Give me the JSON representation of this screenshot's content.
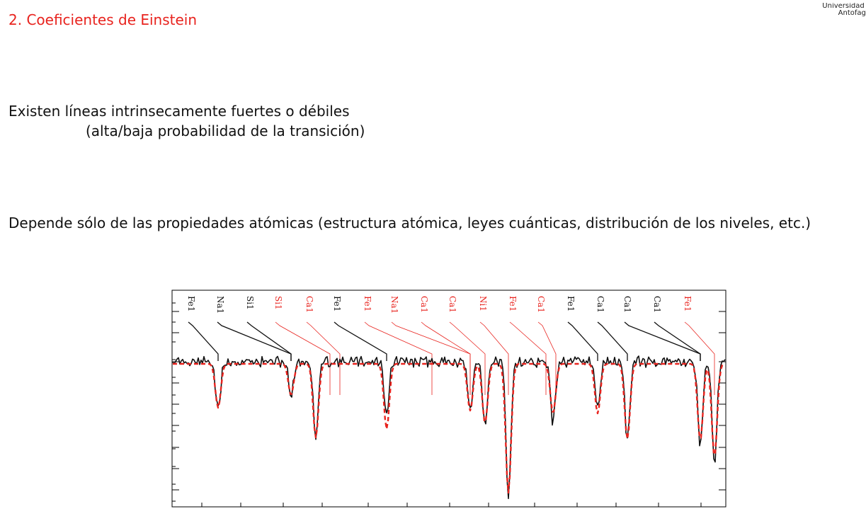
{
  "slide": {
    "title": "2. Coeficientes de Einstein",
    "logo": {
      "line1": "Universidad Ca",
      "line2": "Antofaga"
    },
    "paragraph1": {
      "line1": "Existen líneas intrinsecamente fuertes o débiles",
      "line2": "(alta/baja probabilidad de la transición)"
    },
    "paragraph2": "Depende sólo de las propiedades atómicas (estructura atómica, leyes cuánticas, distribución de los niveles, etc.)"
  },
  "figure": {
    "colors": {
      "observed": "#111111",
      "model": "#e8231e",
      "frame": "#000000"
    },
    "line_labels": [
      {
        "label": "Fe1",
        "color": "black"
      },
      {
        "label": "Na1",
        "color": "black"
      },
      {
        "label": "Si1",
        "color": "black"
      },
      {
        "label": "Si1",
        "color": "red"
      },
      {
        "label": "Ca1",
        "color": "red"
      },
      {
        "label": "Fe1",
        "color": "black"
      },
      {
        "label": "Fe1",
        "color": "red"
      },
      {
        "label": "Na1",
        "color": "red"
      },
      {
        "label": "Ca1",
        "color": "red"
      },
      {
        "label": "Ca1",
        "color": "red"
      },
      {
        "label": "Ni1",
        "color": "red"
      },
      {
        "label": "Fe1",
        "color": "red"
      },
      {
        "label": "Ca1",
        "color": "red"
      },
      {
        "label": "Fe1",
        "color": "black"
      },
      {
        "label": "Ca1",
        "color": "black"
      },
      {
        "label": "Ca1",
        "color": "black"
      },
      {
        "label": "Ca1",
        "color": "black"
      },
      {
        "label": "Fe1",
        "color": "red"
      }
    ]
  }
}
